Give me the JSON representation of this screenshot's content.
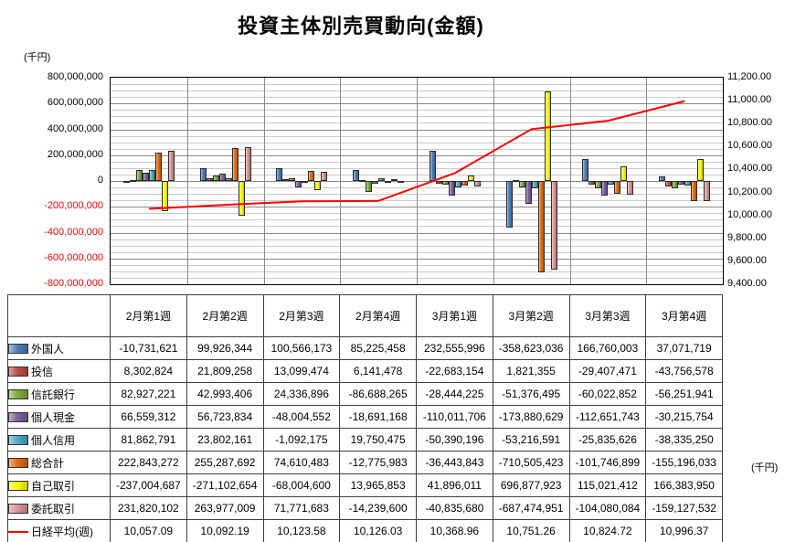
{
  "chart": {
    "title": "投資主体別売買動向(金額)",
    "left_axis_unit": "(千円)",
    "right_axis_unit": "(千円)"
  },
  "chart_data": {
    "type": "bar",
    "title": "投資主体別売買動向(金額)",
    "subtitle": "",
    "legend_position": "data-table-left-column",
    "grid": "horizontal major+minor, vertical category separators",
    "categories": [
      "2月第1週",
      "2月第2週",
      "2月第3週",
      "2月第4週",
      "3月第1週",
      "3月第2週",
      "3月第3週",
      "3月第4週"
    ],
    "left_axis": {
      "unit": "(千円)",
      "min": -800000000,
      "max": 800000000,
      "major_step": 200000000,
      "minor_step": 50000000,
      "tick_labels": [
        "800,000,000",
        "600,000,000",
        "400,000,000",
        "200,000,000",
        "0",
        "-200,000,000",
        "-400,000,000",
        "-600,000,000",
        "-800,000,000"
      ],
      "negative_label_color": "#ff0000"
    },
    "right_axis": {
      "unit": "(千円)",
      "min": 9400,
      "max": 11200,
      "major_step": 200,
      "tick_labels": [
        "11,200.00",
        "11,000.00",
        "10,800.00",
        "10,600.00",
        "10,400.00",
        "10,200.00",
        "10,000.00",
        "9,800.00",
        "9,600.00",
        "9,400.00"
      ]
    },
    "series": [
      {
        "name": "外国人",
        "type": "bar",
        "axis": "left",
        "color": "#4a7ebb",
        "decimals": 0,
        "values": [
          -10731621,
          99926344,
          100566173,
          85225458,
          232555996,
          -358623036,
          166760003,
          37071719
        ]
      },
      {
        "name": "投信",
        "type": "bar",
        "axis": "left",
        "color": "#bd4b44",
        "decimals": 0,
        "values": [
          8302824,
          21809258,
          13099474,
          6141478,
          -22683154,
          1821355,
          -29407471,
          -43756578
        ]
      },
      {
        "name": "信託銀行",
        "type": "bar",
        "axis": "left",
        "color": "#7cae3f",
        "decimals": 0,
        "values": [
          82927221,
          42993406,
          24336896,
          -86688265,
          -28444225,
          -51376495,
          -60022852,
          -56251941
        ]
      },
      {
        "name": "個人現金",
        "type": "bar",
        "axis": "left",
        "color": "#7d60a0",
        "decimals": 0,
        "values": [
          66559312,
          56723834,
          -48004552,
          -18691168,
          -110011706,
          -173880629,
          -112651743,
          -30215754
        ]
      },
      {
        "name": "個人信用",
        "type": "bar",
        "axis": "left",
        "color": "#4aacc5",
        "decimals": 0,
        "values": [
          81862791,
          23802161,
          -1092175,
          19750475,
          -50390196,
          -53216591,
          -25835626,
          -38335250
        ]
      },
      {
        "name": "総合計",
        "type": "bar",
        "axis": "left",
        "color": "#e26b0a",
        "decimals": 0,
        "values": [
          222843272,
          255287692,
          74610483,
          -12775983,
          -36443843,
          -710505423,
          -101746899,
          -155196033
        ]
      },
      {
        "name": "自己取引",
        "type": "bar",
        "axis": "left",
        "color": "#ffff00",
        "decimals": 0,
        "values": [
          -237004687,
          -271102654,
          -68004600,
          13965853,
          41896011,
          696877923,
          115021412,
          166383950
        ]
      },
      {
        "name": "委託取引",
        "type": "bar",
        "axis": "left",
        "color": "#d89694",
        "decimals": 0,
        "values": [
          231820102,
          263977009,
          71771683,
          -14239600,
          -40835680,
          -687474951,
          -104080084,
          -159127532
        ]
      },
      {
        "name": "日経平均(週)",
        "type": "line",
        "axis": "right",
        "color": "#ff0000",
        "decimals": 2,
        "values": [
          10057.09,
          10092.19,
          10123.58,
          10126.03,
          10368.96,
          10751.26,
          10824.72,
          10996.37
        ]
      }
    ]
  }
}
